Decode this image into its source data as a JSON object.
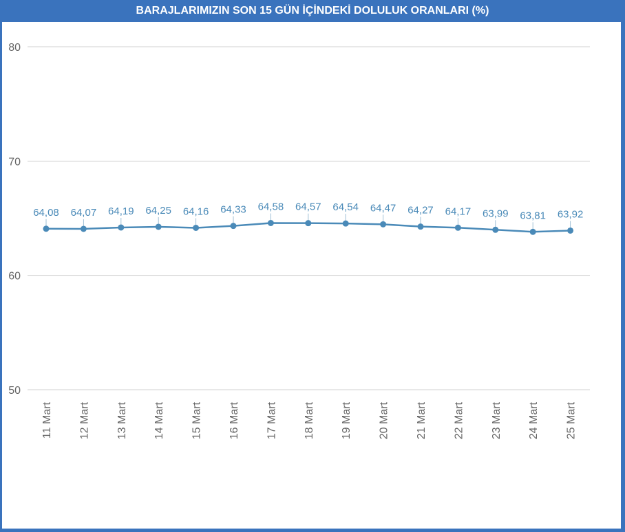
{
  "chart_data": {
    "type": "line",
    "title": "BARAJLARIMIZIN SON 15 GÜN İÇİNDEKİ DOLULUK ORANLARI (%)",
    "xlabel": "",
    "ylabel": "",
    "ylim": [
      50,
      80
    ],
    "yticks": [
      "50",
      "60",
      "70",
      "80"
    ],
    "grid": true,
    "legend": "none",
    "categories": [
      "11 Mart",
      "12 Mart",
      "13 Mart",
      "14 Mart",
      "15 Mart",
      "16 Mart",
      "17 Mart",
      "18 Mart",
      "19 Mart",
      "20 Mart",
      "21 Mart",
      "22 Mart",
      "23 Mart",
      "24 Mart",
      "25 Mart"
    ],
    "values": [
      64.08,
      64.07,
      64.19,
      64.25,
      64.16,
      64.33,
      64.58,
      64.57,
      64.54,
      64.47,
      64.27,
      64.17,
      63.99,
      63.81,
      63.92
    ],
    "value_labels": [
      "64,08",
      "64,07",
      "64,19",
      "64,25",
      "64,16",
      "64,33",
      "64,58",
      "64,57",
      "64,54",
      "64,47",
      "64,27",
      "64,17",
      "63,99",
      "63,81",
      "63,92"
    ],
    "colors": {
      "line": "#4a8ab8",
      "grid": "#d0d0d0",
      "header": "#3a73bd"
    }
  }
}
